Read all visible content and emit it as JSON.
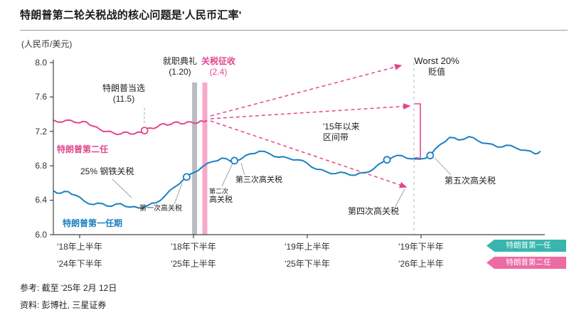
{
  "title": "特朗普第二轮关税战的核心问题是'人民币汇率'",
  "y_axis_unit": "(人民币/美元)",
  "y_ticks": [
    "8.0",
    "7.6",
    "7.2",
    "6.8",
    "6.4",
    "6.0"
  ],
  "x_ticks_row1": [
    "'18年上半年",
    "'18年下半年",
    "'19年上半年",
    "'19年下半年"
  ],
  "x_ticks_row2": [
    "'24年下半年",
    "'25年上半年",
    "'25年下半年",
    "'26年上半年"
  ],
  "badges": [
    {
      "label": "特朗普第一任",
      "color": "#38b6ae"
    },
    {
      "label": "特朗普第二任",
      "color": "#ec6ba4"
    }
  ],
  "colors": {
    "first_term_blue": "#1b7fc2",
    "second_term_pink": "#e2478d",
    "badge_teal": "#38b6ae",
    "badge_pink": "#ec6ba4",
    "inauguration_bar_gray": "#b9bdc2",
    "tariff_bar_pink": "#f5aacb"
  },
  "annotations": {
    "elected_line1": "特朗普当选",
    "elected_line2": "(11.5)",
    "inauguration_line1": "就职典礼",
    "inauguration_line2": "(1.20)",
    "tariff_line1": "关税征收",
    "tariff_line2": "(2.4)",
    "worst_line1": "Worst 20%",
    "worst_line2": "贬值",
    "range_line1": "'15年以来",
    "range_line2": "区间带",
    "second_term_label": "特朗普第二任",
    "first_term_label": "特朗普第一任期",
    "steel_tariff": "25% 钢铁关税",
    "tariff1": "第一次高关税",
    "tariff2_line1": "第二次",
    "tariff2_line2": "高关税",
    "tariff3": "第三次高关税",
    "tariff4": "第四次高关税",
    "tariff5": "第五次高关税"
  },
  "footnotes": {
    "ref": "参考: 截至 '25年 2月 12日",
    "source": "资料: 彭博社, 三星证券"
  },
  "chart_data": {
    "type": "line",
    "title": "特朗普第二轮关税战的核心问题是'人民币汇率'",
    "ylabel": "(人民币/美元)",
    "ylim": [
      6.0,
      8.0
    ],
    "y_tick_values": [
      8.0,
      7.6,
      7.2,
      6.8,
      6.4,
      6.0
    ],
    "x_unit": "half-year periods from first axis tick (0 = '18上半年 tick for first term, = '24下半年 tick for second term; 1 = next half-year tick)",
    "x_axis_first_term": [
      "'18年上半年",
      "'18年下半年",
      "'19年上半年",
      "'19年下半年"
    ],
    "x_axis_second_term": [
      "'24年下半年",
      "'25年上半年",
      "'25年下半年",
      "'26年上半年"
    ],
    "grid": false,
    "series": [
      {
        "name": "特朗普第一任期 (USD/CNY, 2018-2020)",
        "color": "#1b7fc2",
        "x": [
          -0.23,
          -0.17,
          -0.1,
          -0.04,
          0.04,
          0.12,
          0.2,
          0.28,
          0.36,
          0.44,
          0.52,
          0.6,
          0.67,
          0.75,
          0.83,
          0.92,
          1.0,
          1.08,
          1.17,
          1.25,
          1.33,
          1.42,
          1.5,
          1.58,
          1.67,
          1.75,
          1.83,
          1.92,
          2.0,
          2.08,
          2.17,
          2.25,
          2.33,
          2.42,
          2.5,
          2.58,
          2.67,
          2.75,
          2.83,
          2.92,
          3.0,
          3.08,
          3.17,
          3.25,
          3.33,
          3.42,
          3.5,
          3.58,
          3.67,
          3.75,
          3.83,
          3.92,
          4.0,
          4.05
        ],
        "values": [
          6.51,
          6.48,
          6.5,
          6.46,
          6.39,
          6.35,
          6.36,
          6.33,
          6.36,
          6.32,
          6.31,
          6.34,
          6.37,
          6.45,
          6.55,
          6.65,
          6.72,
          6.79,
          6.85,
          6.89,
          6.85,
          6.88,
          6.94,
          6.97,
          6.94,
          6.9,
          6.89,
          6.87,
          6.83,
          6.76,
          6.73,
          6.71,
          6.72,
          6.69,
          6.72,
          6.76,
          6.85,
          6.9,
          6.92,
          6.88,
          6.88,
          6.92,
          7.05,
          7.13,
          7.1,
          7.14,
          7.09,
          7.06,
          7.02,
          7.04,
          7.01,
          6.98,
          6.94,
          6.97
        ]
      },
      {
        "name": "特朗普第二任 (USD/CNY, 2024-2025)",
        "color": "#e2478d",
        "x": [
          -0.23,
          -0.15,
          -0.08,
          0.0,
          0.06,
          0.12,
          0.18,
          0.24,
          0.3,
          0.36,
          0.42,
          0.48,
          0.54,
          0.57,
          0.62,
          0.68,
          0.74,
          0.8,
          0.86,
          0.92,
          0.98,
          1.04,
          1.08,
          1.12
        ],
        "values": [
          7.33,
          7.31,
          7.33,
          7.3,
          7.31,
          7.26,
          7.22,
          7.2,
          7.18,
          7.17,
          7.19,
          7.17,
          7.19,
          7.21,
          7.24,
          7.25,
          7.29,
          7.28,
          7.31,
          7.29,
          7.31,
          7.3,
          7.32,
          7.33
        ]
      }
    ],
    "markers": [
      {
        "series": 1,
        "x": 0.57,
        "value": 7.21,
        "label": "特朗普当选 (11.5)"
      },
      {
        "series": 0,
        "x": 0.94,
        "value": 6.67,
        "label": "第一次高关税"
      },
      {
        "series": 0,
        "x": 1.36,
        "value": 6.86,
        "label": "第二/三次高关税"
      },
      {
        "series": 0,
        "x": 2.7,
        "value": 6.87,
        "label": "第四次高关税"
      },
      {
        "series": 0,
        "x": 3.08,
        "value": 6.92,
        "label": "第五次高关税"
      }
    ],
    "events": [
      {
        "label": "就职典礼 (1.20)",
        "x": 1.01,
        "color": "#b9bdc2"
      },
      {
        "label": "关税征收 (2.4)",
        "x": 1.1,
        "color": "#f5aacb"
      }
    ],
    "annotation_notes": [
      "Worst 20% 贬值 (虚线箭头情景)",
      "'15年以来 区间带"
    ]
  }
}
